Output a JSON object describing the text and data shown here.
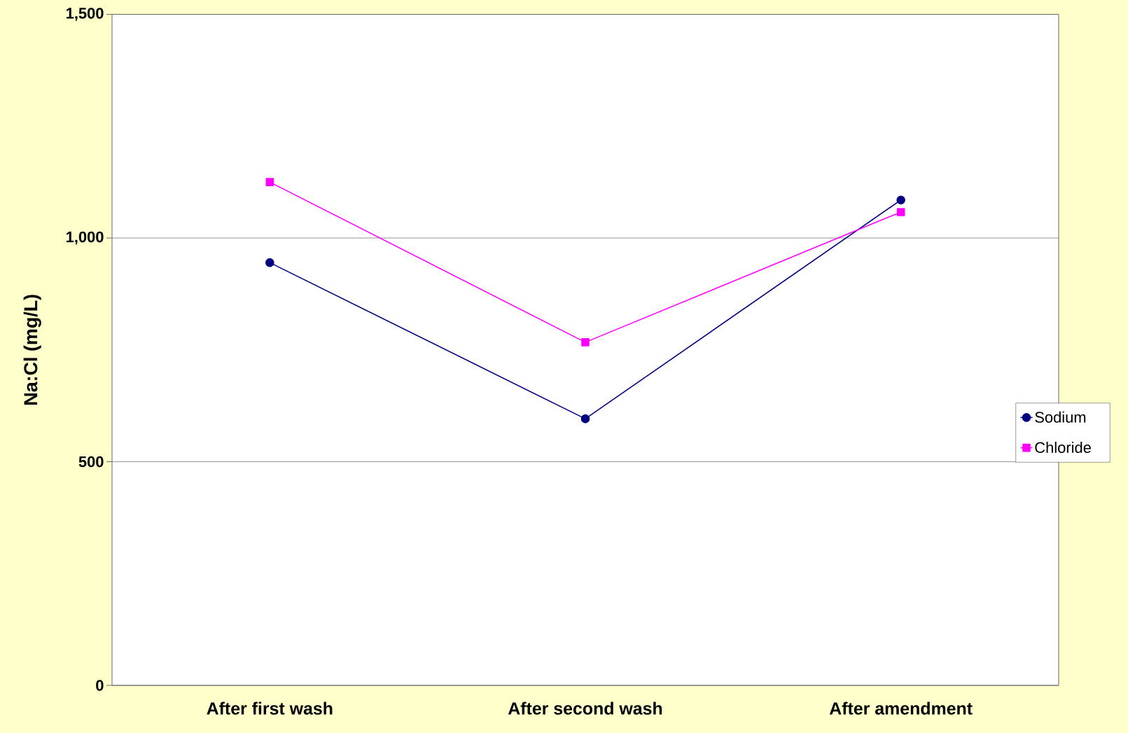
{
  "chart_data": {
    "type": "line",
    "ylabel": "Na:Cl (mg/L)",
    "categories": [
      "After first wash",
      "After second wash",
      "After amendment"
    ],
    "series": [
      {
        "name": "Sodium",
        "color": "#000080",
        "marker": "circle",
        "values": [
          945,
          596,
          1085
        ]
      },
      {
        "name": "Chloride",
        "color": "#ff00ff",
        "marker": "square",
        "values": [
          1125,
          767,
          1058
        ]
      }
    ],
    "ylim": [
      0,
      1500
    ],
    "yticks": [
      {
        "value": 0,
        "label": "0"
      },
      {
        "value": 500,
        "label": "500"
      },
      {
        "value": 1000,
        "label": "1,000"
      },
      {
        "value": 1500,
        "label": "1,500"
      }
    ],
    "grid": "y",
    "legend": "right"
  }
}
